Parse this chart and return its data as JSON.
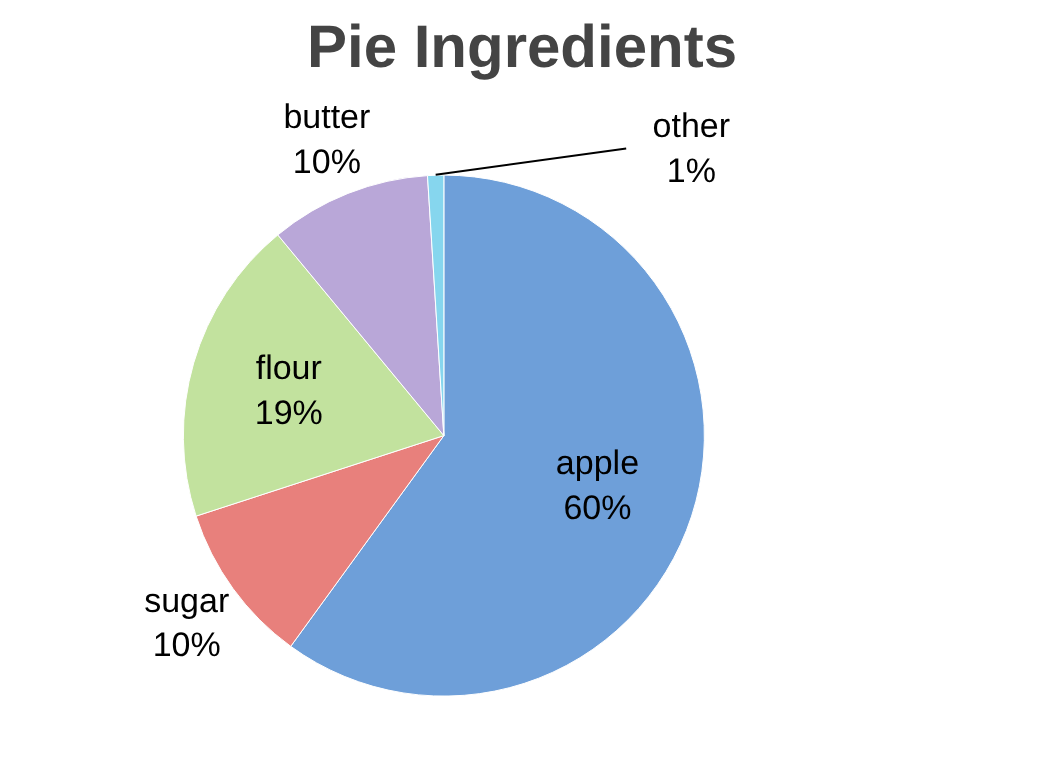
{
  "chart_data": {
    "type": "pie",
    "title": "Pie Ingredients",
    "categories": [
      "apple",
      "sugar",
      "flour",
      "butter",
      "other"
    ],
    "values": [
      60,
      10,
      19,
      10,
      1
    ],
    "value_labels": [
      "60%",
      "10%",
      "19%",
      "10%",
      "1%"
    ],
    "colors": [
      "#6e9fd9",
      "#e8807c",
      "#c2e29e",
      "#b9a7d8",
      "#86d6ee"
    ]
  }
}
